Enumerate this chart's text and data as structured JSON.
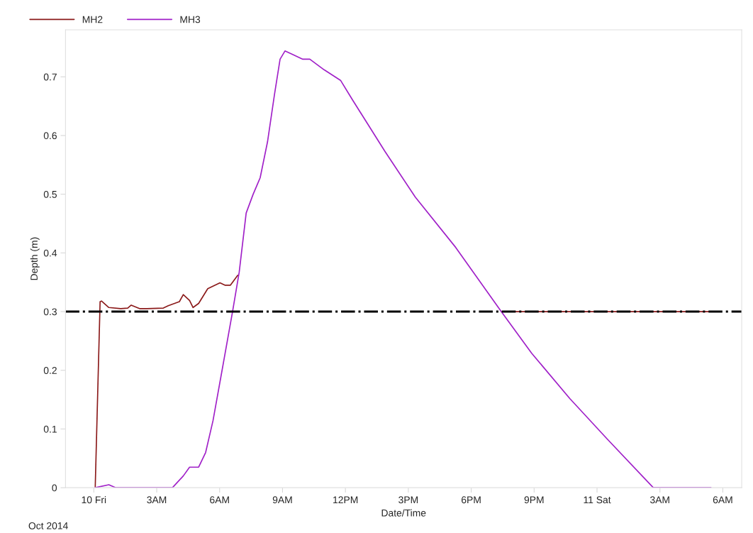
{
  "chart_data": {
    "type": "line",
    "xlabel": "Date/Time",
    "ylabel": "Depth (m)",
    "annotations": [
      "Oct 2014"
    ],
    "xlim": [
      "2014-10-09T22:39",
      "2014-10-11T06:54"
    ],
    "ylim": [
      0,
      0.78
    ],
    "xticks": [
      {
        "value": "2014-10-10T00:00",
        "label": "10 Fri"
      },
      {
        "value": "2014-10-10T03:00",
        "label": "3AM"
      },
      {
        "value": "2014-10-10T06:00",
        "label": "6AM"
      },
      {
        "value": "2014-10-10T09:00",
        "label": "9AM"
      },
      {
        "value": "2014-10-10T12:00",
        "label": "12PM"
      },
      {
        "value": "2014-10-10T15:00",
        "label": "3PM"
      },
      {
        "value": "2014-10-10T18:00",
        "label": "6PM"
      },
      {
        "value": "2014-10-10T21:00",
        "label": "9PM"
      },
      {
        "value": "2014-10-11T00:00",
        "label": "11 Sat"
      },
      {
        "value": "2014-10-11T03:00",
        "label": "3AM"
      },
      {
        "value": "2014-10-11T06:00",
        "label": "6AM"
      }
    ],
    "yticks": [
      0,
      0.1,
      0.2,
      0.3,
      0.4,
      0.5,
      0.6,
      0.7
    ],
    "grid": false,
    "legend": "top left",
    "line_style": "solid",
    "marker": "none",
    "ref_lines": [
      {
        "axis": "y",
        "value": 0.3,
        "color": "#000000",
        "line_style": "dashdot"
      }
    ],
    "series": [
      {
        "name": "MH2",
        "color": "#8b1a1a",
        "x": [
          "2014-10-10T00:04",
          "2014-10-10T00:18",
          "2014-10-10T00:22",
          "2014-10-10T00:43",
          "2014-10-10T01:17",
          "2014-10-10T01:37",
          "2014-10-10T01:47",
          "2014-10-10T02:12",
          "2014-10-10T02:32",
          "2014-10-10T03:19",
          "2014-10-10T03:33",
          "2014-10-10T04:05",
          "2014-10-10T04:16",
          "2014-10-10T04:34",
          "2014-10-10T04:44",
          "2014-10-10T05:00",
          "2014-10-10T05:26",
          "2014-10-10T06:01",
          "2014-10-10T06:15",
          "2014-10-10T06:31",
          "2014-10-10T06:52",
          "2014-10-10T06:56",
          "2014-10-10T07:16",
          "2014-10-10T07:36",
          "2014-10-10T07:56",
          "2014-10-10T08:17",
          "2014-10-10T08:37",
          "2014-10-10T08:53",
          "2014-10-10T09:07",
          "2014-10-10T09:29",
          "2014-10-10T09:58",
          "2014-10-10T10:18",
          "2014-10-10T10:59",
          "2014-10-10T11:46",
          "2014-10-10T12:20",
          "2014-10-10T13:53",
          "2014-10-10T15:20",
          "2014-10-10T17:16",
          "2014-10-10T19:26",
          "2014-10-11T05:26"
        ],
        "values": [
          0,
          0.317,
          0.318,
          0.307,
          0.305,
          0.306,
          0.311,
          0.305,
          0.305,
          0.306,
          0.31,
          0.317,
          0.329,
          0.319,
          0.307,
          0.314,
          0.339,
          0.349,
          0.345,
          0.345,
          0.362,
          null,
          null,
          null,
          null,
          null,
          null,
          null,
          null,
          null,
          null,
          null,
          null,
          null,
          null,
          null,
          null,
          null,
          0.3,
          0.3
        ]
      },
      {
        "name": "MH3",
        "color": "#a020c8",
        "x": [
          "2014-10-10T00:04",
          "2014-10-10T00:43",
          "2014-10-10T01:03",
          "2014-10-10T03:45",
          "2014-10-10T04:16",
          "2014-10-10T04:34",
          "2014-10-10T05:00",
          "2014-10-10T05:20",
          "2014-10-10T05:41",
          "2014-10-10T06:07",
          "2014-10-10T06:37",
          "2014-10-10T06:56",
          "2014-10-10T07:16",
          "2014-10-10T07:36",
          "2014-10-10T07:56",
          "2014-10-10T08:17",
          "2014-10-10T08:37",
          "2014-10-10T08:53",
          "2014-10-10T09:07",
          "2014-10-10T09:29",
          "2014-10-10T09:58",
          "2014-10-10T10:18",
          "2014-10-10T10:59",
          "2014-10-10T11:46",
          "2014-10-10T12:20",
          "2014-10-10T13:53",
          "2014-10-10T15:20",
          "2014-10-10T17:16",
          "2014-10-10T19:26",
          "2014-10-10T20:53",
          "2014-10-10T22:42",
          "2014-10-11T00:29",
          "2014-10-11T02:41",
          "2014-10-11T05:26"
        ],
        "values": [
          0,
          0.005,
          0,
          0,
          0.02,
          0.035,
          0.035,
          0.06,
          0.114,
          0.2,
          0.3,
          0.367,
          0.468,
          0.5,
          0.528,
          0.589,
          0.67,
          0.73,
          0.744,
          0.738,
          0.73,
          0.73,
          0.712,
          0.694,
          0.661,
          0.573,
          0.495,
          0.409,
          0.3,
          0.229,
          0.152,
          0.083,
          0,
          0
        ]
      }
    ]
  }
}
